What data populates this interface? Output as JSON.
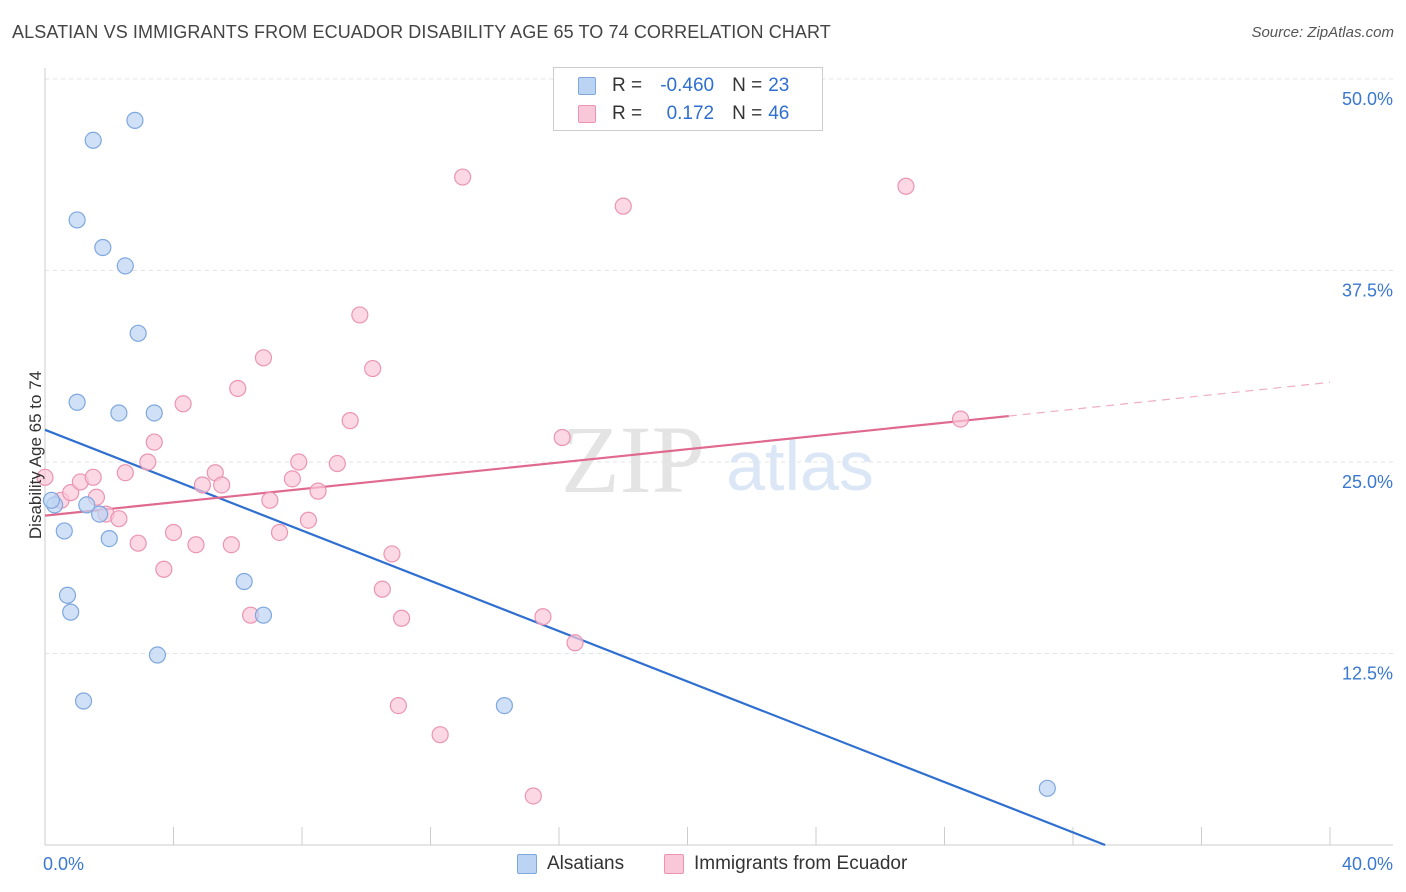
{
  "header": {
    "title": "ALSATIAN VS IMMIGRANTS FROM ECUADOR DISABILITY AGE 65 TO 74 CORRELATION CHART",
    "source": "Source: ZipAtlas.com"
  },
  "legend": {
    "row1": {
      "r_label": "R =",
      "r_value": "-0.460",
      "n_label": "N =",
      "n_value": "23"
    },
    "row2": {
      "r_label": "R =",
      "r_value": "0.172",
      "n_label": "N =",
      "n_value": "46"
    }
  },
  "watermark": {
    "zip": "ZIP",
    "atlas": "atlas"
  },
  "bottom_legend": {
    "alsatians": "Alsatians",
    "ecuador": "Immigrants from Ecuador"
  },
  "colors": {
    "blue_fill": "#bcd4f4",
    "blue_stroke": "#7ea7de",
    "blue_line": "#2f6fd0",
    "pink_fill": "#f9c8d8",
    "pink_stroke": "#eb94b2",
    "pink_line": "#e0698f",
    "tick_text": "#3a78cf",
    "grid": "#e3e3e3"
  },
  "chart_data": {
    "type": "scatter",
    "title": "ALSATIAN VS IMMIGRANTS FROM ECUADOR DISABILITY AGE 65 TO 74 CORRELATION CHART",
    "xlabel": "",
    "ylabel": "Disability Age 65 to 74",
    "xlim": [
      0,
      40
    ],
    "ylim": [
      0,
      50
    ],
    "x_tick_labels": [
      "0.0%",
      "40.0%"
    ],
    "y_ticks": [
      {
        "value": 50,
        "label": "50.0%"
      },
      {
        "value": 37.5,
        "label": "37.5%"
      },
      {
        "value": 25,
        "label": "25.0%"
      },
      {
        "value": 12.5,
        "label": "12.5%"
      }
    ],
    "series": [
      {
        "name": "Alsatians",
        "color": "#bcd4f4",
        "points": [
          {
            "x": 0.3,
            "y": 22.2
          },
          {
            "x": 1.5,
            "y": 46.0
          },
          {
            "x": 2.8,
            "y": 47.3
          },
          {
            "x": 1.0,
            "y": 40.8
          },
          {
            "x": 1.8,
            "y": 39.0
          },
          {
            "x": 2.5,
            "y": 37.8
          },
          {
            "x": 2.9,
            "y": 33.4
          },
          {
            "x": 2.3,
            "y": 28.2
          },
          {
            "x": 3.4,
            "y": 28.2
          },
          {
            "x": 1.3,
            "y": 22.2
          },
          {
            "x": 1.7,
            "y": 21.6
          },
          {
            "x": 0.6,
            "y": 20.5
          },
          {
            "x": 2.0,
            "y": 20.0
          },
          {
            "x": 0.7,
            "y": 16.3
          },
          {
            "x": 0.8,
            "y": 15.2
          },
          {
            "x": 6.2,
            "y": 17.2
          },
          {
            "x": 6.8,
            "y": 15.0
          },
          {
            "x": 3.5,
            "y": 12.4
          },
          {
            "x": 1.2,
            "y": 9.4
          },
          {
            "x": 14.3,
            "y": 9.1
          },
          {
            "x": 31.2,
            "y": 3.7
          },
          {
            "x": 1.0,
            "y": 28.9
          },
          {
            "x": 0.2,
            "y": 22.5
          }
        ],
        "trend": {
          "x": [
            0,
            33
          ],
          "y": [
            27.1,
            0
          ]
        }
      },
      {
        "name": "Immigrants from Ecuador",
        "color": "#f9c8d8",
        "points": [
          {
            "x": 0.0,
            "y": 24.0
          },
          {
            "x": 0.5,
            "y": 22.5
          },
          {
            "x": 0.8,
            "y": 23.0
          },
          {
            "x": 1.1,
            "y": 23.7
          },
          {
            "x": 1.5,
            "y": 24.0
          },
          {
            "x": 1.6,
            "y": 22.7
          },
          {
            "x": 1.9,
            "y": 21.6
          },
          {
            "x": 2.3,
            "y": 21.3
          },
          {
            "x": 2.5,
            "y": 24.3
          },
          {
            "x": 2.9,
            "y": 19.7
          },
          {
            "x": 3.2,
            "y": 25.0
          },
          {
            "x": 3.4,
            "y": 26.3
          },
          {
            "x": 3.7,
            "y": 18.0
          },
          {
            "x": 4.0,
            "y": 20.4
          },
          {
            "x": 4.3,
            "y": 28.8
          },
          {
            "x": 4.7,
            "y": 19.6
          },
          {
            "x": 4.9,
            "y": 23.5
          },
          {
            "x": 5.3,
            "y": 24.3
          },
          {
            "x": 5.5,
            "y": 23.5
          },
          {
            "x": 5.8,
            "y": 19.6
          },
          {
            "x": 6.0,
            "y": 29.8
          },
          {
            "x": 6.4,
            "y": 15.0
          },
          {
            "x": 6.8,
            "y": 31.8
          },
          {
            "x": 7.0,
            "y": 22.5
          },
          {
            "x": 7.3,
            "y": 20.4
          },
          {
            "x": 7.7,
            "y": 23.9
          },
          {
            "x": 7.9,
            "y": 25.0
          },
          {
            "x": 8.2,
            "y": 21.2
          },
          {
            "x": 8.5,
            "y": 23.1
          },
          {
            "x": 9.1,
            "y": 24.9
          },
          {
            "x": 9.5,
            "y": 27.7
          },
          {
            "x": 9.8,
            "y": 34.6
          },
          {
            "x": 10.2,
            "y": 31.1
          },
          {
            "x": 10.5,
            "y": 16.7
          },
          {
            "x": 10.8,
            "y": 19.0
          },
          {
            "x": 11.1,
            "y": 14.8
          },
          {
            "x": 11.0,
            "y": 9.1
          },
          {
            "x": 12.3,
            "y": 7.2
          },
          {
            "x": 13.0,
            "y": 43.6
          },
          {
            "x": 15.2,
            "y": 3.2
          },
          {
            "x": 15.5,
            "y": 14.9
          },
          {
            "x": 16.1,
            "y": 26.6
          },
          {
            "x": 16.5,
            "y": 13.2
          },
          {
            "x": 18.0,
            "y": 41.7
          },
          {
            "x": 26.8,
            "y": 43.0
          },
          {
            "x": 28.5,
            "y": 27.8
          }
        ],
        "trend": {
          "x": [
            0,
            30
          ],
          "y": [
            21.5,
            28.0
          ]
        },
        "trend_dashed": {
          "x": [
            30,
            40
          ],
          "y": [
            28.0,
            30.2
          ]
        }
      }
    ]
  }
}
